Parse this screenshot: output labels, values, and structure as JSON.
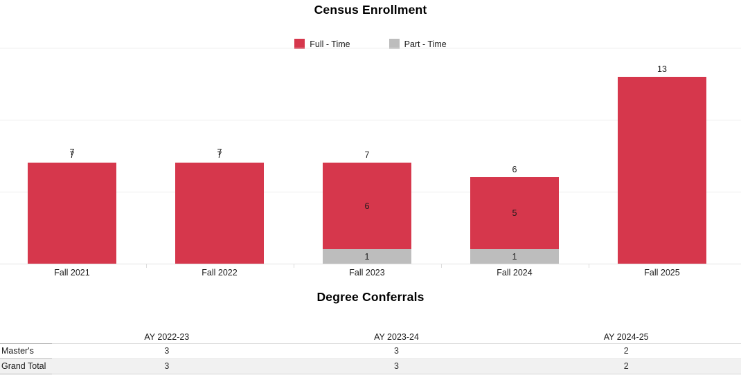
{
  "chart_data": [
    {
      "type": "bar",
      "stacked": true,
      "title": "Census Enrollment",
      "categories": [
        "Fall 2021",
        "Fall 2022",
        "Fall 2023",
        "Fall 2024",
        "Fall 2025"
      ],
      "series": [
        {
          "name": "Part - Time",
          "color": "#bdbdbd",
          "values": [
            0,
            0,
            1,
            1,
            0
          ],
          "segment_labels": [
            "",
            "",
            "1",
            "1",
            ""
          ]
        },
        {
          "name": "Full - Time",
          "color": "#d6374c",
          "values": [
            7,
            7,
            6,
            5,
            13
          ],
          "segment_labels": [
            "",
            "",
            "6",
            "5",
            ""
          ]
        }
      ],
      "totals": [
        7,
        7,
        7,
        6,
        13
      ],
      "total_labels": [
        "7",
        "7",
        "7",
        "6",
        "13"
      ],
      "doubled_total_labels": [
        true,
        true,
        false,
        false,
        false
      ],
      "legend": [
        {
          "label": "Full - Time",
          "color": "#d6374c"
        },
        {
          "label": "Part - Time",
          "color": "#bdbdbd"
        }
      ],
      "legend_position": "top",
      "ylim": [
        0,
        15
      ],
      "gridline_values": [
        0,
        5,
        10,
        15
      ],
      "grid": true,
      "xlabel": "",
      "ylabel": ""
    },
    {
      "type": "table",
      "title": "Degree Conferrals",
      "columns": [
        "AY 2022-23",
        "AY 2023-24",
        "AY 2024-25"
      ],
      "rows": [
        {
          "label": "Master's",
          "values": [
            "3",
            "3",
            "2"
          ],
          "is_total": false
        },
        {
          "label": "Grand Total",
          "values": [
            "3",
            "3",
            "2"
          ],
          "is_total": true
        }
      ]
    }
  ]
}
